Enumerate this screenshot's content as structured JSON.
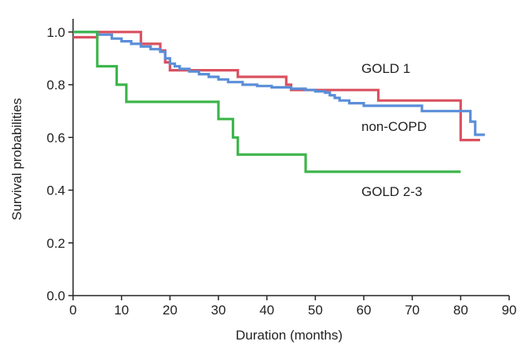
{
  "chart_data": {
    "type": "line",
    "step": true,
    "xlabel": "Duration (months)",
    "ylabel": "Survival probabilities",
    "xlim": [
      0,
      90
    ],
    "ylim": [
      0,
      1.05
    ],
    "xticks": [
      0,
      10,
      20,
      30,
      40,
      50,
      60,
      70,
      80,
      90
    ],
    "yticks": [
      0.0,
      0.2,
      0.4,
      0.6,
      0.8,
      1.0
    ],
    "xtick_labels": [
      "0",
      "10",
      "20",
      "30",
      "40",
      "50",
      "60",
      "70",
      "80",
      "90"
    ],
    "ytick_labels": [
      "0.0",
      "0.2",
      "0.4",
      "0.6",
      "0.8",
      "1.0"
    ],
    "grid": false,
    "series": [
      {
        "name": "GOLD 1",
        "color": "#d9505f",
        "x": [
          0,
          1,
          5,
          14,
          18,
          19,
          20,
          34,
          44,
          45,
          63,
          80,
          84
        ],
        "y": [
          0.98,
          0.98,
          1.0,
          0.955,
          0.93,
          0.885,
          0.855,
          0.83,
          0.8,
          0.78,
          0.74,
          0.59,
          0.59
        ]
      },
      {
        "name": "non-COPD",
        "color": "#5a8ed8",
        "x": [
          0,
          5,
          8,
          10,
          12,
          14,
          16,
          18,
          19,
          20,
          21,
          22,
          24,
          26,
          28,
          30,
          32,
          35,
          38,
          41,
          45,
          48,
          50,
          52,
          53,
          54,
          55,
          57,
          60,
          65,
          70,
          72,
          80,
          82,
          83,
          85
        ],
        "y": [
          1.0,
          0.99,
          0.975,
          0.965,
          0.955,
          0.945,
          0.935,
          0.925,
          0.9,
          0.88,
          0.87,
          0.86,
          0.85,
          0.84,
          0.83,
          0.82,
          0.81,
          0.8,
          0.795,
          0.79,
          0.785,
          0.78,
          0.775,
          0.77,
          0.76,
          0.75,
          0.74,
          0.73,
          0.72,
          0.72,
          0.72,
          0.7,
          0.7,
          0.66,
          0.61,
          0.61
        ]
      },
      {
        "name": "GOLD 2-3",
        "color": "#3cb54a",
        "x": [
          0,
          5,
          9,
          11,
          30,
          33,
          34,
          48,
          80
        ],
        "y": [
          1.0,
          0.87,
          0.8,
          0.735,
          0.67,
          0.6,
          0.535,
          0.47,
          0.47
        ]
      }
    ]
  }
}
